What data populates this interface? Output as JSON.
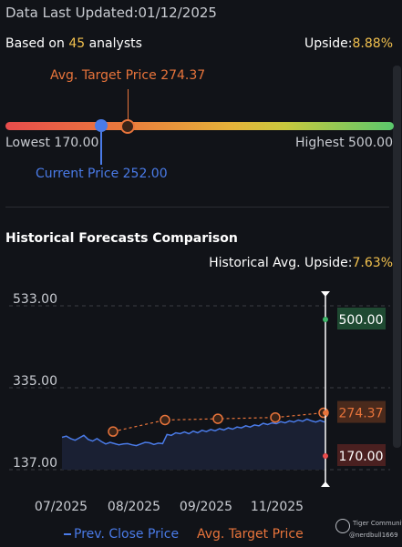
{
  "header": {
    "updated_label": "Data Last Updated:",
    "updated_date": "01/12/2025",
    "based_prefix": "Based on ",
    "analyst_count": "45",
    "based_suffix": " analysts",
    "upside_label": "Upside:",
    "upside_value": "8.88%"
  },
  "range": {
    "avg_target_label": "Avg. Target Price 274.37",
    "lowest_label": "Lowest 170.00",
    "highest_label": "Highest 500.00",
    "current_label": "Current Price 252.00",
    "avg_target": 274.37,
    "lowest": 170.0,
    "highest": 500.0,
    "current": 252.0
  },
  "historical": {
    "title": "Historical Forecasts Comparison",
    "upside_label": "Historical Avg. Upside:",
    "upside_value": "7.63%",
    "legend_close": "Prev. Close Price",
    "legend_avg": "Avg. Target Price"
  },
  "chart_data": {
    "type": "line",
    "y_ticks": [
      "533.00",
      "335.00",
      "137.00"
    ],
    "ylim": [
      137,
      533
    ],
    "x_ticks": [
      "07/2025",
      "08/2025",
      "09/2025",
      "11/2025"
    ],
    "series": [
      {
        "name": "Prev. Close Price",
        "color": "#4a7be8",
        "values": [
          215,
          218,
          212,
          208,
          214,
          220,
          210,
          206,
          212,
          205,
          199,
          203,
          200,
          197,
          199,
          200,
          197,
          195,
          199,
          203,
          202,
          198,
          201,
          200,
          222,
          220,
          226,
          224,
          228,
          224,
          230,
          226,
          232,
          229,
          234,
          231,
          236,
          233,
          238,
          235,
          240,
          238,
          243,
          240,
          245,
          243,
          249,
          246,
          250,
          248,
          253,
          250,
          255,
          252,
          257,
          254,
          259,
          255,
          252,
          256,
          252
        ]
      },
      {
        "name": "Avg. Target Price",
        "color": "#e8743b",
        "values": [
          229,
          257,
          260,
          263,
          274.37
        ]
      }
    ],
    "markers": [
      {
        "label": "500.00",
        "value": 500,
        "color": "#3fb66a",
        "bg": "#1f4a32"
      },
      {
        "label": "274.37",
        "value": 274.37,
        "color": "#e8743b",
        "bg": "#4a2a1c"
      },
      {
        "label": "170.00",
        "value": 170,
        "color": "#e84c4c",
        "bg": "#4a2020"
      }
    ]
  },
  "watermark": {
    "brand": "Tiger Community",
    "user": "@nerdbull1669"
  }
}
